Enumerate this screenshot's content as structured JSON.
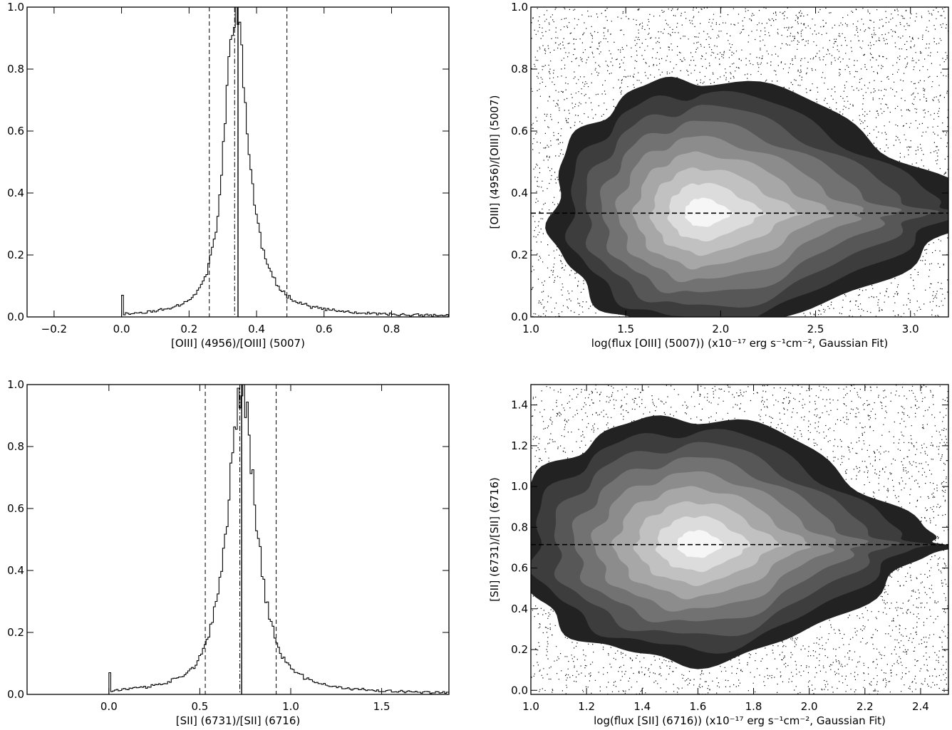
{
  "chart_data": [
    {
      "type": "histogram",
      "xlabel": "[OIII] (4956)/[OIII] (5007)",
      "ylabel": "",
      "xlim": [
        -0.28,
        0.97
      ],
      "ylim": [
        0,
        1.0
      ],
      "xticks": [
        -0.2,
        0.0,
        0.2,
        0.4,
        0.6,
        0.8
      ],
      "xtick_labels": [
        "−0.2",
        "0.0",
        "0.2",
        "0.4",
        "0.6",
        "0.8"
      ],
      "yticks": [
        0.0,
        0.2,
        0.4,
        0.6,
        0.8,
        1.0
      ],
      "ytick_labels": [
        "0.0",
        "0.2",
        "0.4",
        "0.6",
        "0.8",
        "1.0"
      ],
      "peak": 0.335,
      "sigma_left": 0.035,
      "sigma_right": 0.045,
      "gamma": 0.9,
      "spike_at_zero": 0.07,
      "data_start": 0.0,
      "median_line": 0.345,
      "dashdot_line": 0.335,
      "dashed_lines": [
        0.26,
        0.49
      ],
      "grid": false
    },
    {
      "type": "heatmap",
      "subtype": "filled-contour",
      "xlabel": "log(flux [OIII] (5007)) (x10⁻¹⁷ erg s⁻¹cm⁻², Gaussian Fit)",
      "ylabel": "[OIII] (4956)/[OIII] (5007)",
      "xlim": [
        1.0,
        3.2
      ],
      "ylim": [
        0,
        1.0
      ],
      "xticks": [
        1.0,
        1.5,
        2.0,
        2.5,
        3.0
      ],
      "xtick_labels": [
        "1.0",
        "1.5",
        "2.0",
        "2.5",
        "3.0"
      ],
      "yticks": [
        0.0,
        0.2,
        0.4,
        0.6,
        0.8,
        1.0
      ],
      "ytick_labels": [
        "0.0",
        "0.2",
        "0.4",
        "0.6",
        "0.8",
        "1.0"
      ],
      "reference_line": 0.335,
      "contour_levels": 9,
      "center": [
        1.9,
        0.335
      ],
      "grid": false
    },
    {
      "type": "histogram",
      "xlabel": "[SII] (6731)/[SII] (6716)",
      "ylabel": "",
      "xlim": [
        -0.45,
        1.87
      ],
      "ylim": [
        0,
        1.0
      ],
      "xticks": [
        0.0,
        0.5,
        1.0,
        1.5
      ],
      "xtick_labels": [
        "0.0",
        "0.5",
        "1.0",
        "1.5"
      ],
      "yticks": [
        0.0,
        0.2,
        0.4,
        0.6,
        0.8,
        1.0
      ],
      "ytick_labels": [
        "0.0",
        "0.2",
        "0.4",
        "0.6",
        "0.8",
        "1.0"
      ],
      "peak": 0.73,
      "sigma_left": 0.09,
      "sigma_right": 0.09,
      "gamma": 0.85,
      "spike_at_zero": 0.07,
      "data_start": 0.0,
      "median_line": 0.73,
      "dashdot_line": 0.72,
      "dashed_lines": [
        0.53,
        0.92
      ],
      "grid": false
    },
    {
      "type": "heatmap",
      "subtype": "filled-contour",
      "xlabel": "log(flux [SII] (6716)) (x10⁻¹⁷ erg s⁻¹cm⁻², Gaussian Fit)",
      "ylabel": "[SII] (6731)/[SII] (6716)",
      "xlim": [
        1.0,
        2.5
      ],
      "ylim": [
        -0.02,
        1.5
      ],
      "xticks": [
        1.0,
        1.2,
        1.4,
        1.6,
        1.8,
        2.0,
        2.2,
        2.4
      ],
      "xtick_labels": [
        "1.0",
        "1.2",
        "1.4",
        "1.6",
        "1.8",
        "2.0",
        "2.2",
        "2.4"
      ],
      "yticks": [
        0.0,
        0.2,
        0.4,
        0.6,
        0.8,
        1.0,
        1.2,
        1.4
      ],
      "ytick_labels": [
        "0.0",
        "0.2",
        "0.4",
        "0.6",
        "0.8",
        "1.0",
        "1.2",
        "1.4"
      ],
      "reference_line": 0.715,
      "contour_levels": 9,
      "center": [
        1.6,
        0.715
      ],
      "grid": false
    }
  ]
}
